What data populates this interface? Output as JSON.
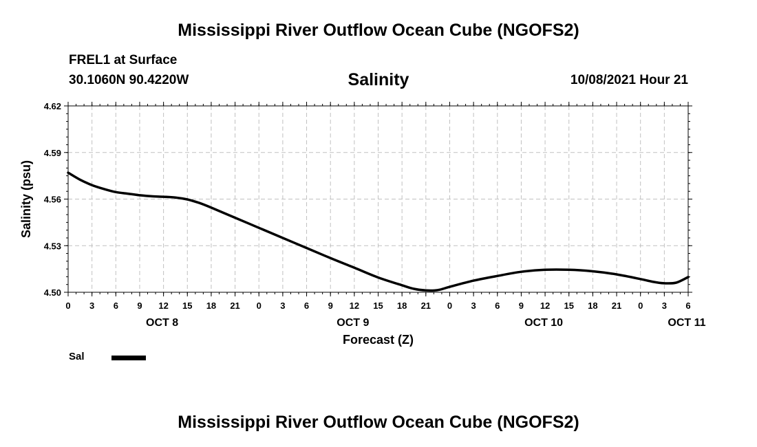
{
  "page": {
    "top_title": "Mississippi River Outflow Ocean Cube (NGOFS2)",
    "bottom_title": "Mississippi River Outflow Ocean Cube (NGOFS2)",
    "station": "FREL1 at Surface",
    "coordinates": "30.1060N  90.4220W",
    "timestamp": "10/08/2021 Hour 21"
  },
  "chart_data": {
    "type": "line",
    "title": "Salinity",
    "xlabel": "Forecast (Z)",
    "ylabel": "Salinity (psu)",
    "grid": true,
    "line_color": "#000000",
    "grid_color": "#c0c0c0",
    "ylim": [
      4.5,
      4.62
    ],
    "yticks": [
      "4.62",
      "4.59",
      "4.56",
      "4.53",
      "4.50"
    ],
    "xlim_hours": [
      0,
      78
    ],
    "xtick_labels": [
      "0",
      "3",
      "6",
      "9",
      "12",
      "15",
      "18",
      "21",
      "0",
      "3",
      "6",
      "9",
      "12",
      "15",
      "18",
      "21",
      "0",
      "3",
      "6",
      "9",
      "12",
      "15",
      "18",
      "21",
      "0",
      "3",
      "6"
    ],
    "date_labels": [
      {
        "label": "OCT 8",
        "hour": 12
      },
      {
        "label": "OCT 9",
        "hour": 36
      },
      {
        "label": "OCT 10",
        "hour": 60
      },
      {
        "label": "OCT 11",
        "hour": 78
      }
    ],
    "legend": [
      {
        "name": "Sal",
        "color": "#000000"
      }
    ],
    "series": [
      {
        "name": "Sal",
        "x_hours": [
          0,
          1.5,
          3,
          4.5,
          6,
          7.5,
          9,
          10.5,
          12,
          13.5,
          15,
          16.5,
          18,
          21,
          24,
          27,
          30,
          33,
          36,
          39,
          42,
          43.5,
          45,
          46.5,
          48,
          51,
          54,
          57,
          60,
          63,
          66,
          69,
          72,
          73.5,
          75,
          76.5,
          78
        ],
        "values": [
          4.577,
          4.5725,
          4.569,
          4.5665,
          4.5645,
          4.5635,
          4.5625,
          4.5618,
          4.5615,
          4.561,
          4.5598,
          4.5575,
          4.5545,
          4.548,
          4.5415,
          4.535,
          4.5285,
          4.522,
          4.5158,
          4.5095,
          4.5045,
          4.5022,
          4.5012,
          4.5014,
          4.5035,
          4.5075,
          4.5105,
          4.5132,
          4.5145,
          4.5145,
          4.5135,
          4.5115,
          4.5085,
          4.5068,
          4.5058,
          4.5062,
          4.5098
        ]
      }
    ]
  }
}
